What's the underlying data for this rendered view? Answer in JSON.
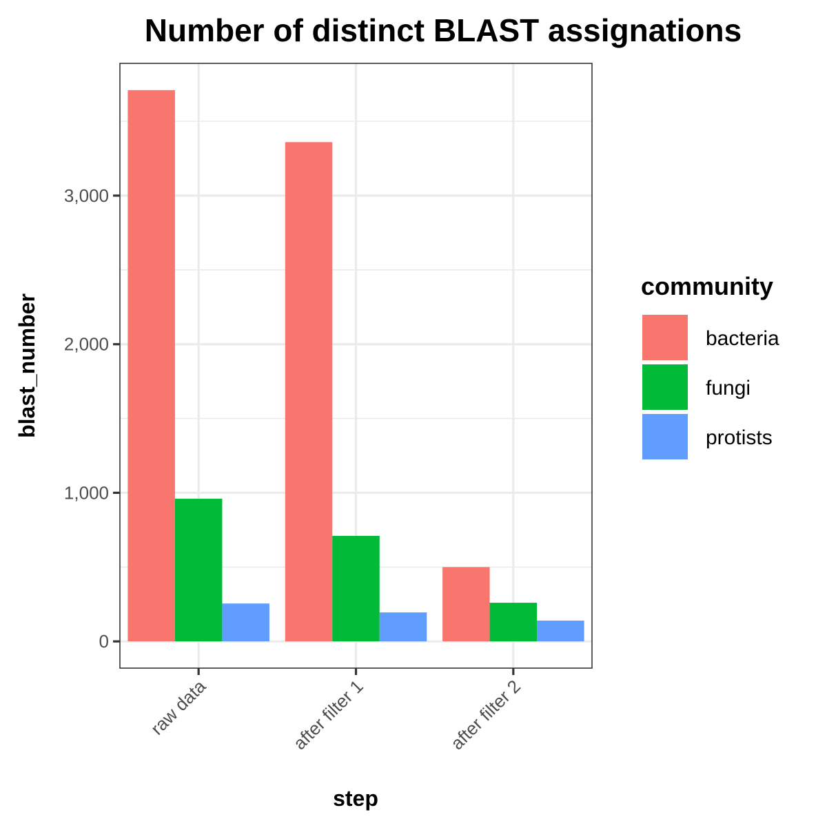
{
  "chart_data": {
    "type": "bar",
    "title": "Number of distinct BLAST assignations",
    "xlabel": "step",
    "ylabel": "blast_number",
    "categories": [
      "raw data",
      "after filter 1",
      "after filter 2"
    ],
    "series": [
      {
        "name": "bacteria",
        "color": "#F8766D",
        "values": [
          3710,
          3360,
          500
        ]
      },
      {
        "name": "fungi",
        "color": "#00BA38",
        "values": [
          960,
          710,
          260
        ]
      },
      {
        "name": "protists",
        "color": "#619CFF",
        "values": [
          255,
          195,
          140
        ]
      }
    ],
    "ylim": [
      -180,
      3890
    ],
    "y_ticks": [
      0,
      1000,
      2000,
      3000
    ],
    "y_tick_labels": [
      "0",
      "1,000",
      "2,000",
      "3,000"
    ],
    "y_minor_ticks": [
      500,
      1500,
      2500,
      3500
    ],
    "grid": true,
    "legend": {
      "title": "community",
      "position": "right"
    },
    "x_tick_label_rotation": "45 degrees"
  }
}
